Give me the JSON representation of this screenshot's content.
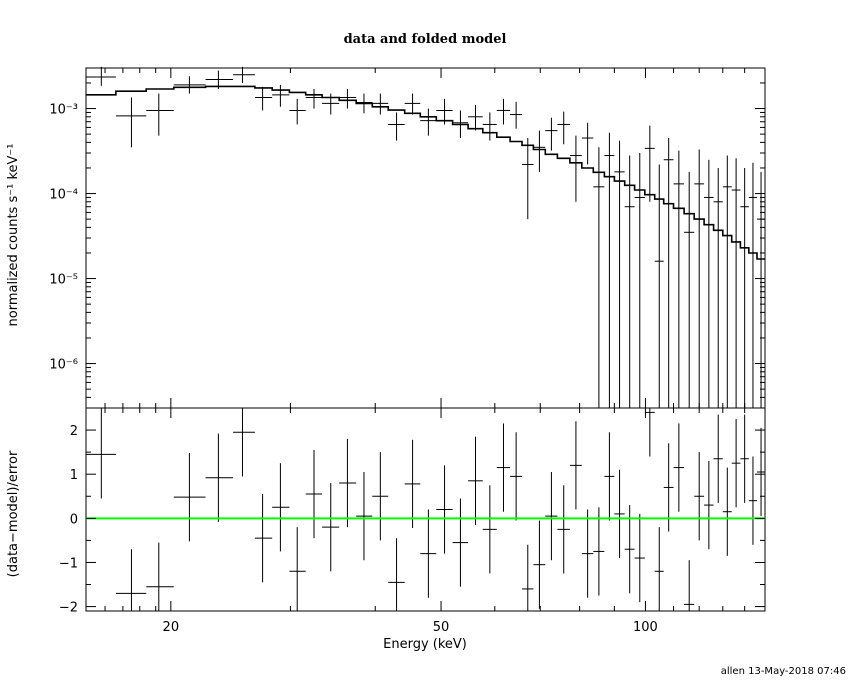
{
  "chart_data": {
    "type": "scatter",
    "title": "data and folded model",
    "footer": "allen 13-May-2018 07:46",
    "xlabel": "Energy (keV)",
    "x_scale": "log",
    "xlim": [
      15,
      150
    ],
    "xticks": [
      {
        "v": 20,
        "label": "20"
      },
      {
        "v": 50,
        "label": "50"
      },
      {
        "v": 100,
        "label": "100"
      }
    ],
    "top_panel": {
      "ylabel": "normalized counts s⁻¹ keV⁻¹",
      "y_scale": "log",
      "ylim": [
        3e-07,
        0.003
      ],
      "yticks": [
        {
          "v": 1e-06,
          "label": "10⁻⁶"
        },
        {
          "v": 1e-05,
          "label": "10⁻⁵"
        },
        {
          "v": 0.0001,
          "label": "10⁻⁴"
        },
        {
          "v": 0.001,
          "label": "10⁻³"
        }
      ],
      "data": [
        {
          "x": 15.8,
          "xl": 15.0,
          "xh": 16.6,
          "y": 0.00235,
          "yl": 0.00185,
          "yh": 0.0031
        },
        {
          "x": 17.5,
          "xl": 16.6,
          "xh": 18.4,
          "y": 0.00082,
          "yl": 0.00035,
          "yh": 0.00135
        },
        {
          "x": 19.2,
          "xl": 18.4,
          "xh": 20.2,
          "y": 0.00095,
          "yl": 0.00048,
          "yh": 0.0015
        },
        {
          "x": 21.3,
          "xl": 20.2,
          "xh": 22.5,
          "y": 0.0019,
          "yl": 0.0015,
          "yh": 0.0024
        },
        {
          "x": 23.5,
          "xl": 22.5,
          "xh": 24.7,
          "y": 0.0022,
          "yl": 0.0017,
          "yh": 0.0028
        },
        {
          "x": 25.5,
          "xl": 24.7,
          "xh": 26.6,
          "y": 0.0025,
          "yl": 0.002,
          "yh": 0.0031
        },
        {
          "x": 27.3,
          "xl": 26.6,
          "xh": 28.2,
          "y": 0.00135,
          "yl": 0.00095,
          "yh": 0.0018
        },
        {
          "x": 29.0,
          "xl": 28.2,
          "xh": 29.9,
          "y": 0.00145,
          "yl": 0.00105,
          "yh": 0.0019
        },
        {
          "x": 30.7,
          "xl": 29.9,
          "xh": 31.6,
          "y": 0.00095,
          "yl": 0.00065,
          "yh": 0.0013
        },
        {
          "x": 32.5,
          "xl": 31.6,
          "xh": 33.4,
          "y": 0.00135,
          "yl": 0.001,
          "yh": 0.0017
        },
        {
          "x": 34.4,
          "xl": 33.4,
          "xh": 35.4,
          "y": 0.00115,
          "yl": 0.00085,
          "yh": 0.0015
        },
        {
          "x": 36.4,
          "xl": 35.4,
          "xh": 37.5,
          "y": 0.00135,
          "yl": 0.001,
          "yh": 0.0017
        },
        {
          "x": 38.5,
          "xl": 37.5,
          "xh": 39.6,
          "y": 0.00118,
          "yl": 0.00088,
          "yh": 0.0015
        },
        {
          "x": 40.7,
          "xl": 39.6,
          "xh": 41.8,
          "y": 0.00115,
          "yl": 0.00085,
          "yh": 0.0015
        },
        {
          "x": 43.0,
          "xl": 41.8,
          "xh": 44.2,
          "y": 0.00065,
          "yl": 0.00042,
          "yh": 0.0009
        },
        {
          "x": 45.4,
          "xl": 44.2,
          "xh": 46.6,
          "y": 0.00115,
          "yl": 0.00085,
          "yh": 0.0015
        },
        {
          "x": 47.9,
          "xl": 46.6,
          "xh": 49.2,
          "y": 0.00072,
          "yl": 0.00048,
          "yh": 0.001
        },
        {
          "x": 50.6,
          "xl": 49.2,
          "xh": 52.0,
          "y": 0.00095,
          "yl": 0.00065,
          "yh": 0.0013
        },
        {
          "x": 53.4,
          "xl": 52.0,
          "xh": 54.8,
          "y": 0.00068,
          "yl": 0.00045,
          "yh": 0.00095
        },
        {
          "x": 56.2,
          "xl": 54.8,
          "xh": 57.6,
          "y": 0.0008,
          "yl": 0.00055,
          "yh": 0.0011
        },
        {
          "x": 59.0,
          "xl": 57.6,
          "xh": 60.4,
          "y": 0.00065,
          "yl": 0.00042,
          "yh": 0.0009
        },
        {
          "x": 61.8,
          "xl": 60.4,
          "xh": 63.2,
          "y": 0.00095,
          "yl": 0.00065,
          "yh": 0.0013
        },
        {
          "x": 64.5,
          "xl": 63.2,
          "xh": 65.8,
          "y": 0.00085,
          "yl": 0.00058,
          "yh": 0.0012
        },
        {
          "x": 67.1,
          "xl": 65.8,
          "xh": 68.4,
          "y": 0.00022,
          "yl": 5e-05,
          "yh": 0.00045
        },
        {
          "x": 69.8,
          "xl": 68.4,
          "xh": 71.2,
          "y": 0.00035,
          "yl": 0.00018,
          "yh": 0.00055
        },
        {
          "x": 72.7,
          "xl": 71.2,
          "xh": 74.2,
          "y": 0.00055,
          "yl": 0.00032,
          "yh": 0.00078
        },
        {
          "x": 75.8,
          "xl": 74.2,
          "xh": 77.4,
          "y": 0.00065,
          "yl": 0.00038,
          "yh": 0.00092
        },
        {
          "x": 79.0,
          "xl": 77.4,
          "xh": 80.6,
          "y": 0.00028,
          "yl": 8e-05,
          "yh": 0.00048
        },
        {
          "x": 82.2,
          "xl": 80.6,
          "xh": 83.8,
          "y": 0.00045,
          "yl": 0.00022,
          "yh": 0.00068
        },
        {
          "x": 85.4,
          "xl": 83.8,
          "xh": 87.0,
          "y": 0.00012,
          "yl": 3e-07,
          "yh": 0.00035
        },
        {
          "x": 88.5,
          "xl": 87.0,
          "xh": 90.0,
          "y": 0.00028,
          "yl": 3e-07,
          "yh": 0.00052
        },
        {
          "x": 91.6,
          "xl": 90.0,
          "xh": 93.2,
          "y": 0.00018,
          "yl": 3e-07,
          "yh": 0.00042
        },
        {
          "x": 94.8,
          "xl": 93.2,
          "xh": 96.4,
          "y": 7e-05,
          "yl": 3e-07,
          "yh": 0.00028
        },
        {
          "x": 98.1,
          "xl": 96.4,
          "xh": 99.8,
          "y": 9e-05,
          "yl": 3e-07,
          "yh": 0.0003
        },
        {
          "x": 101.5,
          "xl": 99.8,
          "xh": 103.2,
          "y": 0.00034,
          "yl": 8e-05,
          "yh": 0.00063
        },
        {
          "x": 104.8,
          "xl": 103.2,
          "xh": 106.4,
          "y": 1.6e-05,
          "yl": 3e-07,
          "yh": 0.00022
        },
        {
          "x": 108.2,
          "xl": 106.4,
          "xh": 110.0,
          "y": 0.00025,
          "yl": 3e-07,
          "yh": 0.00045
        },
        {
          "x": 112.0,
          "xl": 110.0,
          "xh": 114.0,
          "y": 0.00013,
          "yl": 3e-07,
          "yh": 0.00032
        },
        {
          "x": 116.0,
          "xl": 114.0,
          "xh": 118.0,
          "y": 3.5e-05,
          "yl": 3e-07,
          "yh": 0.00018
        },
        {
          "x": 120.0,
          "xl": 118.0,
          "xh": 122.0,
          "y": 0.00013,
          "yl": 3e-07,
          "yh": 0.00033
        },
        {
          "x": 124.0,
          "xl": 122.0,
          "xh": 126.0,
          "y": 9e-05,
          "yl": 3e-07,
          "yh": 0.00025
        },
        {
          "x": 128.0,
          "xl": 126.0,
          "xh": 130.0,
          "y": 8e-05,
          "yl": 3e-07,
          "yh": 0.0002
        },
        {
          "x": 132.0,
          "xl": 130.0,
          "xh": 134.0,
          "y": 0.00012,
          "yl": 3e-07,
          "yh": 0.00028
        },
        {
          "x": 136.0,
          "xl": 134.0,
          "xh": 138.0,
          "y": 0.00011,
          "yl": 3e-07,
          "yh": 0.00026
        },
        {
          "x": 140.0,
          "xl": 138.0,
          "xh": 142.0,
          "y": 7e-05,
          "yl": 3e-07,
          "yh": 0.0002
        },
        {
          "x": 144.0,
          "xl": 142.0,
          "xh": 146.0,
          "y": 9e-05,
          "yl": 3e-07,
          "yh": 0.00023
        },
        {
          "x": 148.0,
          "xl": 146.0,
          "xh": 150.0,
          "y": 5e-05,
          "yl": 3e-07,
          "yh": 0.00018
        }
      ],
      "model": {
        "edges": [
          15.0,
          16.6,
          18.4,
          20.2,
          22.5,
          24.7,
          26.6,
          28.2,
          29.9,
          31.6,
          33.4,
          35.4,
          37.5,
          39.6,
          41.8,
          44.2,
          46.6,
          49.2,
          52.0,
          54.8,
          57.6,
          60.4,
          63.2,
          65.8,
          68.4,
          71.2,
          74.2,
          77.4,
          80.6,
          83.8,
          87.0,
          90.0,
          93.2,
          96.4,
          99.8,
          103.2,
          106.4,
          110.0,
          114.0,
          118.0,
          122.0,
          126.0,
          130.0,
          134.0,
          138.0,
          142.0,
          146.0,
          150.0
        ],
        "values": [
          0.00145,
          0.0016,
          0.0017,
          0.00178,
          0.00182,
          0.00182,
          0.00175,
          0.00165,
          0.00155,
          0.00145,
          0.00135,
          0.00125,
          0.00115,
          0.00105,
          0.00096,
          0.00088,
          0.0008,
          0.00072,
          0.00065,
          0.00058,
          0.00052,
          0.00046,
          0.00041,
          0.00037,
          0.00033,
          0.00029,
          0.00026,
          0.00023,
          0.0002,
          0.000178,
          0.000158,
          0.00014,
          0.000125,
          0.00011,
          9.7e-05,
          8.6e-05,
          7.6e-05,
          6.7e-05,
          5.8e-05,
          5e-05,
          4.3e-05,
          3.7e-05,
          3.2e-05,
          2.7e-05,
          2.3e-05,
          2e-05,
          1.7e-05
        ]
      }
    },
    "bottom_panel": {
      "ylabel": "(data−model)/error",
      "y_scale": "linear",
      "ylim": [
        -2.1,
        2.5
      ],
      "yticks": [
        {
          "v": -2,
          "label": "−2"
        },
        {
          "v": -1,
          "label": "−1"
        },
        {
          "v": 0,
          "label": "0"
        },
        {
          "v": 1,
          "label": "1"
        },
        {
          "v": 2,
          "label": "2"
        }
      ],
      "zero_line_color": "#00ff00",
      "data": [
        {
          "x": 15.8,
          "xl": 15.0,
          "xh": 16.6,
          "y": 1.45,
          "yl": 0.45,
          "yh": 2.5
        },
        {
          "x": 17.5,
          "xl": 16.6,
          "xh": 18.4,
          "y": -1.7,
          "yl": -2.1,
          "yh": -0.7
        },
        {
          "x": 19.2,
          "xl": 18.4,
          "xh": 20.2,
          "y": -1.55,
          "yl": -2.1,
          "yh": -0.55
        },
        {
          "x": 21.3,
          "xl": 20.2,
          "xh": 22.5,
          "y": 0.48,
          "yl": -0.52,
          "yh": 1.48
        },
        {
          "x": 23.5,
          "xl": 22.5,
          "xh": 24.7,
          "y": 0.92,
          "yl": -0.08,
          "yh": 1.92
        },
        {
          "x": 25.5,
          "xl": 24.7,
          "xh": 26.6,
          "y": 1.95,
          "yl": 0.95,
          "yh": 2.5
        },
        {
          "x": 27.3,
          "xl": 26.6,
          "xh": 28.2,
          "y": -0.45,
          "yl": -1.45,
          "yh": 0.55
        },
        {
          "x": 29.0,
          "xl": 28.2,
          "xh": 29.9,
          "y": 0.25,
          "yl": -0.75,
          "yh": 1.25
        },
        {
          "x": 30.7,
          "xl": 29.9,
          "xh": 31.6,
          "y": -1.2,
          "yl": -2.1,
          "yh": -0.2
        },
        {
          "x": 32.5,
          "xl": 31.6,
          "xh": 33.4,
          "y": 0.55,
          "yl": -0.45,
          "yh": 1.55
        },
        {
          "x": 34.4,
          "xl": 33.4,
          "xh": 35.4,
          "y": -0.2,
          "yl": -1.2,
          "yh": 0.8
        },
        {
          "x": 36.4,
          "xl": 35.4,
          "xh": 37.5,
          "y": 0.8,
          "yl": -0.2,
          "yh": 1.8
        },
        {
          "x": 38.5,
          "xl": 37.5,
          "xh": 39.6,
          "y": 0.05,
          "yl": -0.95,
          "yh": 1.05
        },
        {
          "x": 40.7,
          "xl": 39.6,
          "xh": 41.8,
          "y": 0.5,
          "yl": -0.5,
          "yh": 1.5
        },
        {
          "x": 43.0,
          "xl": 41.8,
          "xh": 44.2,
          "y": -1.45,
          "yl": -2.1,
          "yh": -0.45
        },
        {
          "x": 45.4,
          "xl": 44.2,
          "xh": 46.6,
          "y": 0.78,
          "yl": -0.22,
          "yh": 1.78
        },
        {
          "x": 47.9,
          "xl": 46.6,
          "xh": 49.2,
          "y": -0.8,
          "yl": -1.8,
          "yh": 0.2
        },
        {
          "x": 50.6,
          "xl": 49.2,
          "xh": 52.0,
          "y": 0.2,
          "yl": -0.8,
          "yh": 1.2
        },
        {
          "x": 53.4,
          "xl": 52.0,
          "xh": 54.8,
          "y": -0.55,
          "yl": -1.55,
          "yh": 0.45
        },
        {
          "x": 56.2,
          "xl": 54.8,
          "xh": 57.6,
          "y": 0.85,
          "yl": -0.15,
          "yh": 1.85
        },
        {
          "x": 59.0,
          "xl": 57.6,
          "xh": 60.4,
          "y": -0.25,
          "yl": -1.25,
          "yh": 0.75
        },
        {
          "x": 61.8,
          "xl": 60.4,
          "xh": 63.2,
          "y": 1.15,
          "yl": 0.15,
          "yh": 2.15
        },
        {
          "x": 64.5,
          "xl": 63.2,
          "xh": 65.8,
          "y": 0.95,
          "yl": -0.05,
          "yh": 1.95
        },
        {
          "x": 67.1,
          "xl": 65.8,
          "xh": 68.4,
          "y": -1.6,
          "yl": -2.1,
          "yh": -0.6
        },
        {
          "x": 69.8,
          "xl": 68.4,
          "xh": 71.2,
          "y": -1.05,
          "yl": -2.05,
          "yh": -0.05
        },
        {
          "x": 72.7,
          "xl": 71.2,
          "xh": 74.2,
          "y": 0.05,
          "yl": -0.95,
          "yh": 1.05
        },
        {
          "x": 75.8,
          "xl": 74.2,
          "xh": 77.4,
          "y": -0.25,
          "yl": -1.25,
          "yh": 0.75
        },
        {
          "x": 79.0,
          "xl": 77.4,
          "xh": 80.6,
          "y": 1.2,
          "yl": 0.2,
          "yh": 2.2
        },
        {
          "x": 82.2,
          "xl": 80.6,
          "xh": 83.8,
          "y": -0.8,
          "yl": -1.8,
          "yh": 0.2
        },
        {
          "x": 85.4,
          "xl": 83.8,
          "xh": 87.0,
          "y": -0.75,
          "yl": -1.75,
          "yh": 0.25
        },
        {
          "x": 88.5,
          "xl": 87.0,
          "xh": 90.0,
          "y": 0.95,
          "yl": -0.05,
          "yh": 1.95
        },
        {
          "x": 91.6,
          "xl": 90.0,
          "xh": 93.2,
          "y": 0.1,
          "yl": -0.9,
          "yh": 1.1
        },
        {
          "x": 94.8,
          "xl": 93.2,
          "xh": 96.4,
          "y": -0.7,
          "yl": -1.7,
          "yh": 0.3
        },
        {
          "x": 98.1,
          "xl": 96.4,
          "xh": 99.8,
          "y": -0.9,
          "yl": -1.9,
          "yh": 0.1
        },
        {
          "x": 101.5,
          "xl": 99.8,
          "xh": 103.2,
          "y": 2.4,
          "yl": 1.4,
          "yh": 2.5
        },
        {
          "x": 104.8,
          "xl": 103.2,
          "xh": 106.4,
          "y": -1.2,
          "yl": -2.1,
          "yh": -0.2
        },
        {
          "x": 108.2,
          "xl": 106.4,
          "xh": 110.0,
          "y": 0.7,
          "yl": -0.3,
          "yh": 1.7
        },
        {
          "x": 112.0,
          "xl": 110.0,
          "xh": 114.0,
          "y": 1.15,
          "yl": 0.15,
          "yh": 2.15
        },
        {
          "x": 116.0,
          "xl": 114.0,
          "xh": 118.0,
          "y": -1.95,
          "yl": -2.1,
          "yh": -0.95
        },
        {
          "x": 120.0,
          "xl": 118.0,
          "xh": 122.0,
          "y": 0.5,
          "yl": -0.5,
          "yh": 1.5
        },
        {
          "x": 124.0,
          "xl": 122.0,
          "xh": 126.0,
          "y": 0.3,
          "yl": -0.7,
          "yh": 1.3
        },
        {
          "x": 128.0,
          "xl": 126.0,
          "xh": 130.0,
          "y": 1.35,
          "yl": 0.35,
          "yh": 2.35
        },
        {
          "x": 132.0,
          "xl": 130.0,
          "xh": 134.0,
          "y": 0.15,
          "yl": -0.85,
          "yh": 1.15
        },
        {
          "x": 136.0,
          "xl": 134.0,
          "xh": 138.0,
          "y": 1.25,
          "yl": 0.25,
          "yh": 2.25
        },
        {
          "x": 140.0,
          "xl": 138.0,
          "xh": 142.0,
          "y": 1.35,
          "yl": 0.35,
          "yh": 2.35
        },
        {
          "x": 144.0,
          "xl": 142.0,
          "xh": 146.0,
          "y": 0.4,
          "yl": -0.6,
          "yh": 1.4
        },
        {
          "x": 148.0,
          "xl": 146.0,
          "xh": 150.0,
          "y": 1.05,
          "yl": 0.05,
          "yh": 2.05
        }
      ]
    }
  }
}
